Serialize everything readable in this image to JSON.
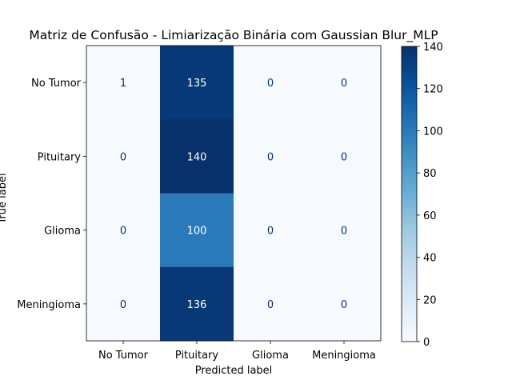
{
  "chart_data": {
    "type": "heatmap",
    "title": "Matriz de Confusão - Limiarização Binária com Gaussian Blur_MLP",
    "xlabel": "Predicted label",
    "ylabel": "True label",
    "x_categories": [
      "No Tumor",
      "Pituitary",
      "Glioma",
      "Meningioma"
    ],
    "y_categories": [
      "No Tumor",
      "Pituitary",
      "Glioma",
      "Meningioma"
    ],
    "values": [
      [
        1,
        135,
        0,
        0
      ],
      [
        0,
        140,
        0,
        0
      ],
      [
        0,
        100,
        0,
        0
      ],
      [
        0,
        136,
        0,
        0
      ]
    ],
    "colormap": "Blues",
    "colorbar": {
      "range": [
        0,
        140
      ],
      "ticks": [
        0,
        20,
        40,
        60,
        80,
        100,
        120,
        140
      ]
    }
  }
}
